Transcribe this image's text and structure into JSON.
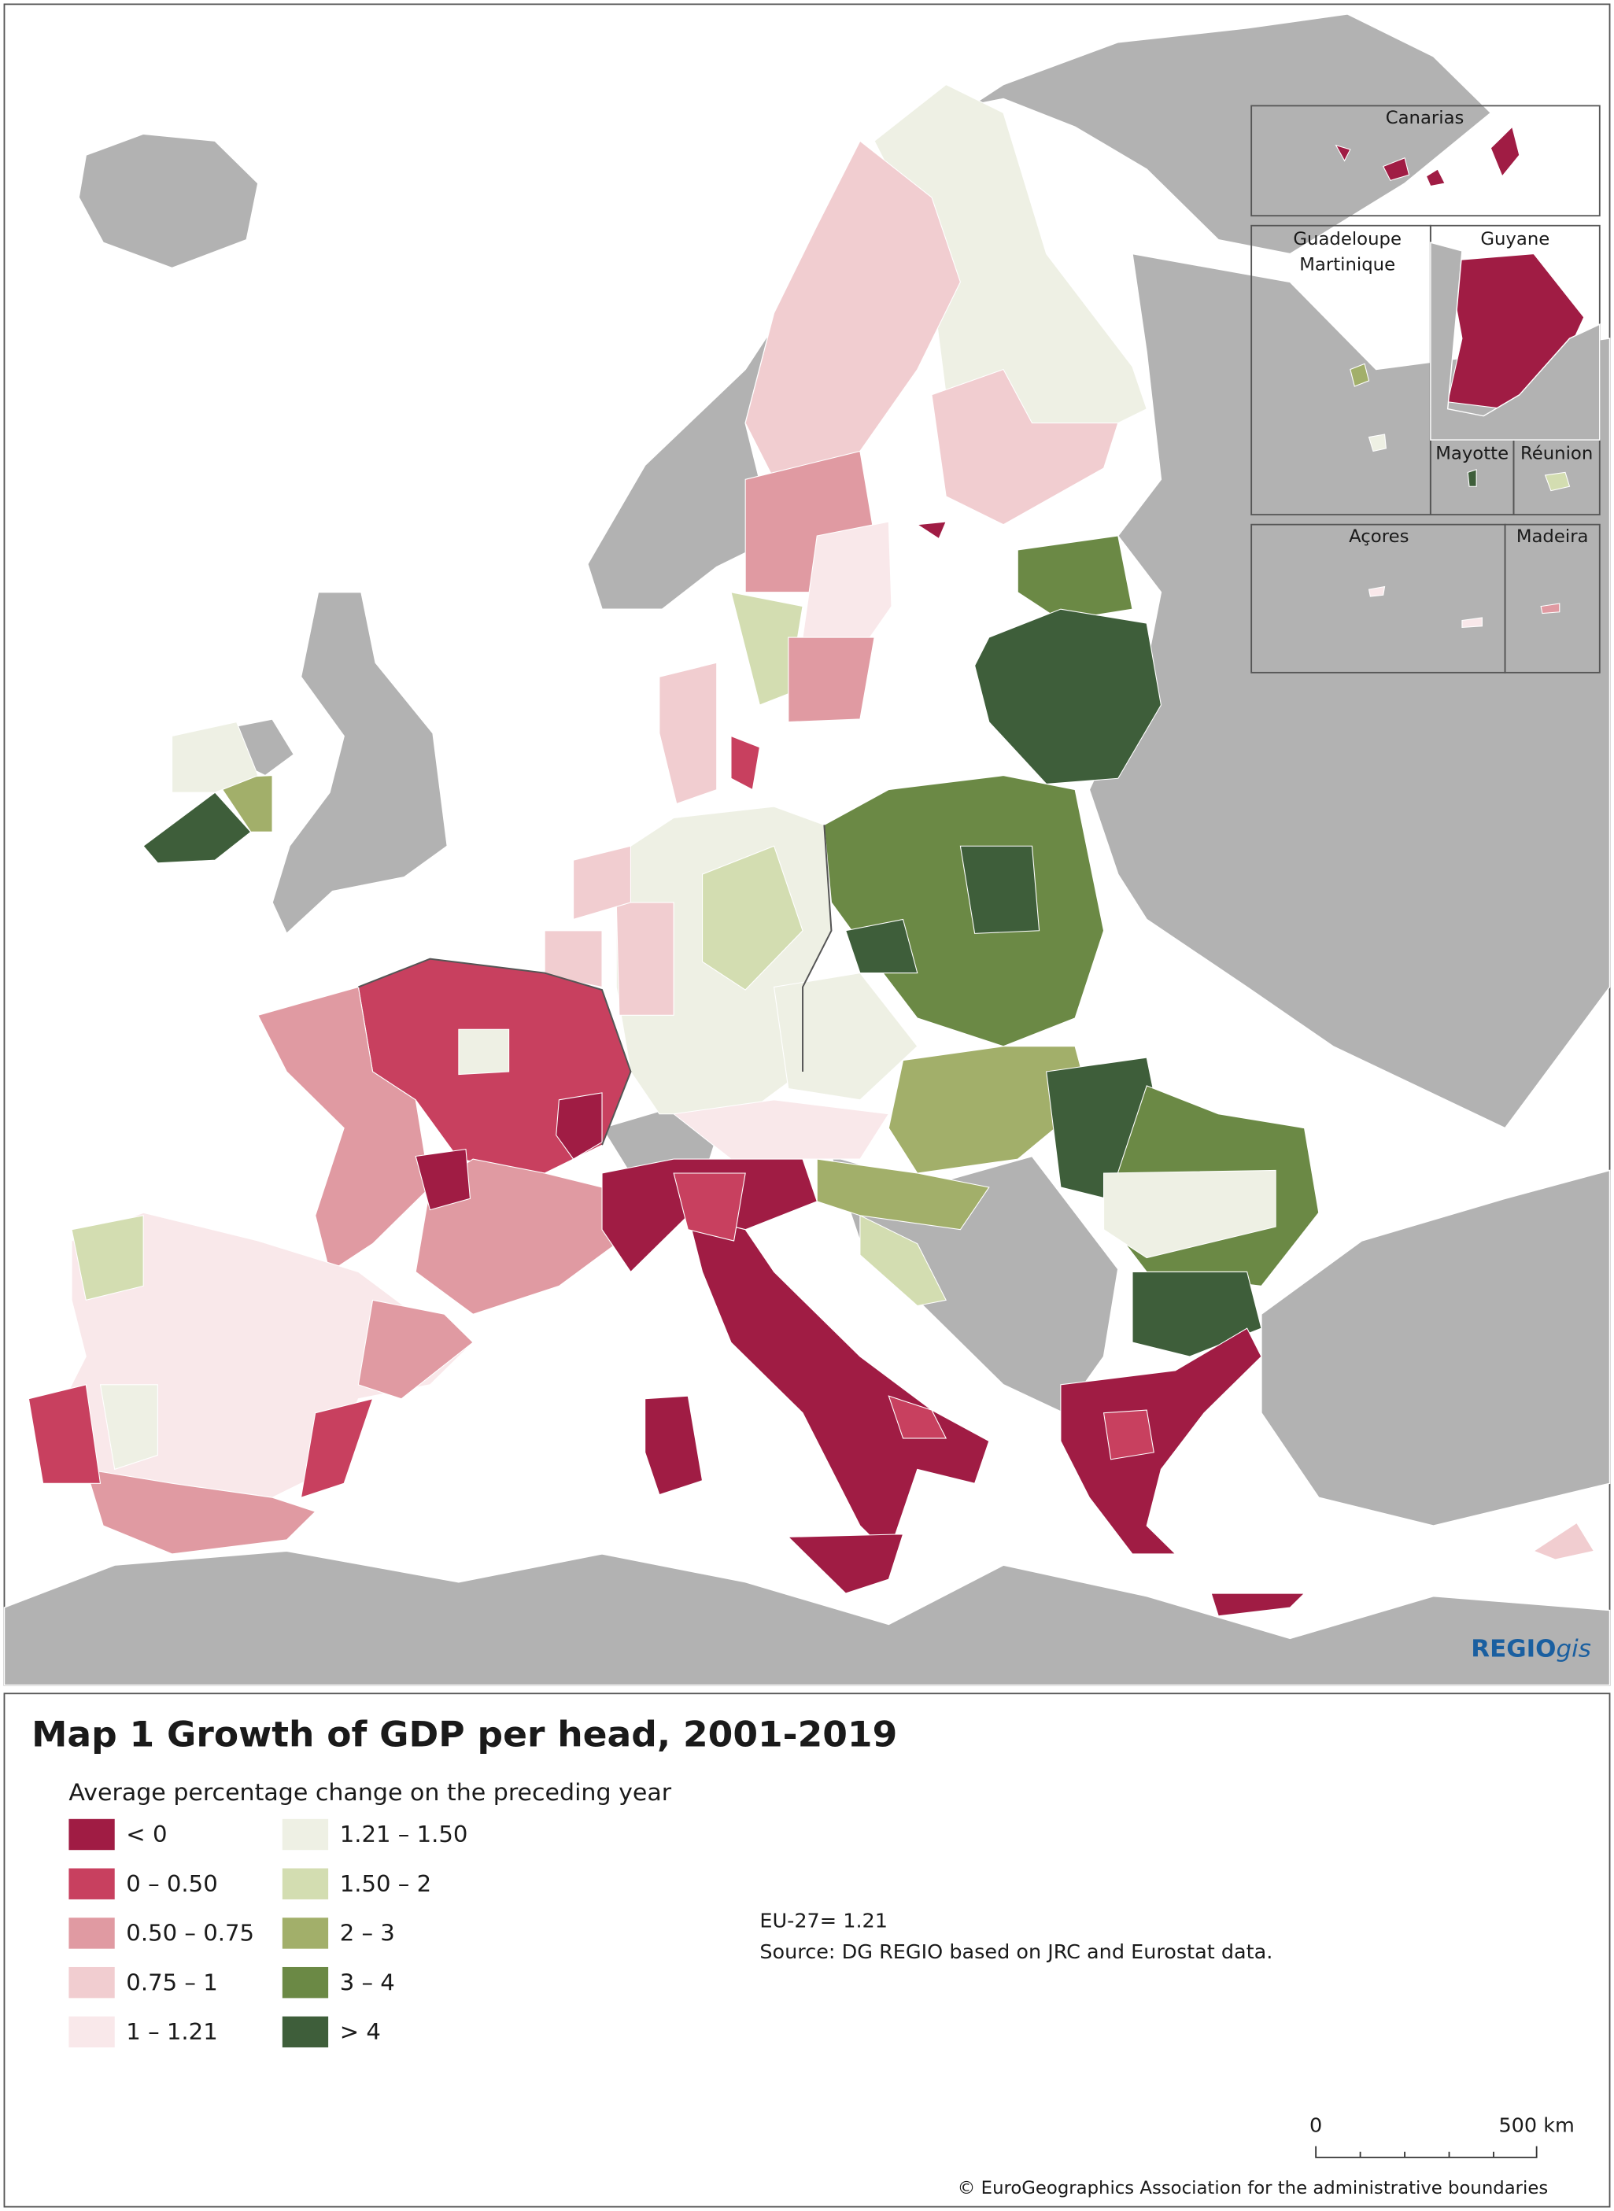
{
  "map": {
    "insets": [
      {
        "label": "Canarias"
      },
      {
        "lines": [
          "Guadeloupe",
          "Martinique"
        ]
      },
      {
        "label": "Guyane"
      },
      {
        "label": "Mayotte"
      },
      {
        "label": "Réunion"
      },
      {
        "label": "Açores"
      },
      {
        "label": "Madeira"
      }
    ],
    "brand": {
      "bold": "REGIO",
      "italic": "gis",
      "color": "#1a5fa0"
    }
  },
  "title": "Map 1 Growth of GDP per head, 2001-2019",
  "legend": {
    "title": "Average percentage change on the preceding year",
    "items": [
      {
        "label": "< 0",
        "color": "#a01c44"
      },
      {
        "label": "0 – 0.50",
        "color": "#c8405f"
      },
      {
        "label": "0.50 – 0.75",
        "color": "#e09aa2"
      },
      {
        "label": "0.75 – 1",
        "color": "#f1cdd0"
      },
      {
        "label": "1 – 1.21",
        "color": "#f9e8ea"
      },
      {
        "label": "1.21 – 1.50",
        "color": "#eef0e4"
      },
      {
        "label": "1.50 – 2",
        "color": "#d3ddb1"
      },
      {
        "label": "2 – 3",
        "color": "#a2af6a"
      },
      {
        "label": "3 – 4",
        "color": "#6b8945"
      },
      {
        "label": "> 4",
        "color": "#3e5e3a"
      }
    ]
  },
  "note": "EU-27= 1.21",
  "source": "Source: DG REGIO based on JRC and Eurostat data.",
  "scale_bar": {
    "start": "0",
    "end": "500 km"
  },
  "copyright": "© EuroGeographics Association for the administrative boundaries"
}
